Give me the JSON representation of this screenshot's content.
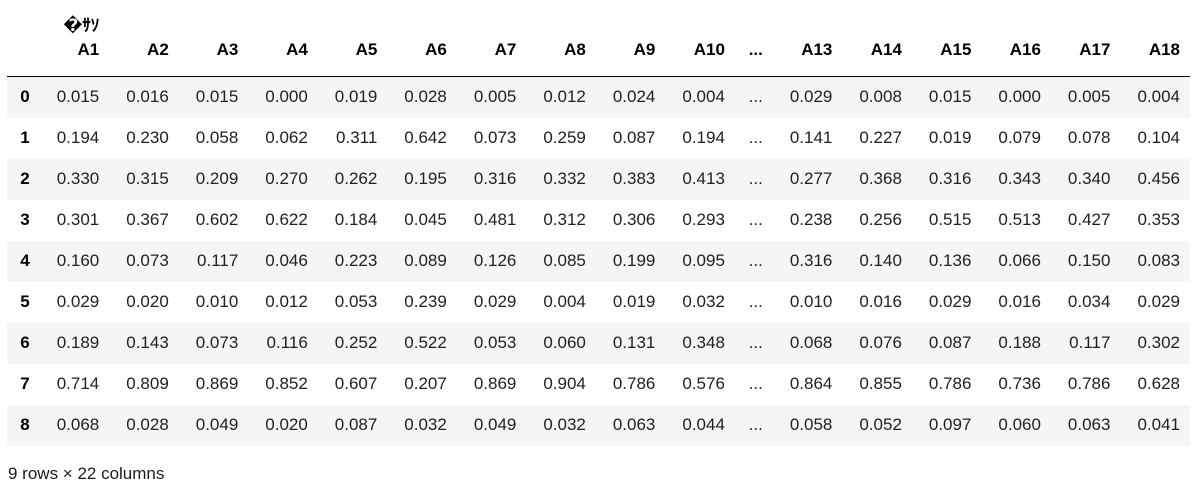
{
  "table": {
    "corner_label": "",
    "columns": [
      "�ｻｿ\nA1",
      "A2",
      "A3",
      "A4",
      "A5",
      "A6",
      "A7",
      "A8",
      "A9",
      "A10",
      "...",
      "A13",
      "A14",
      "A15",
      "A16",
      "A17",
      "A18"
    ],
    "rows": [
      {
        "index": "0",
        "values": [
          "0.015",
          "0.016",
          "0.015",
          "0.000",
          "0.019",
          "0.028",
          "0.005",
          "0.012",
          "0.024",
          "0.004",
          "...",
          "0.029",
          "0.008",
          "0.015",
          "0.000",
          "0.005",
          "0.004"
        ]
      },
      {
        "index": "1",
        "values": [
          "0.194",
          "0.230",
          "0.058",
          "0.062",
          "0.311",
          "0.642",
          "0.073",
          "0.259",
          "0.087",
          "0.194",
          "...",
          "0.141",
          "0.227",
          "0.019",
          "0.079",
          "0.078",
          "0.104"
        ]
      },
      {
        "index": "2",
        "values": [
          "0.330",
          "0.315",
          "0.209",
          "0.270",
          "0.262",
          "0.195",
          "0.316",
          "0.332",
          "0.383",
          "0.413",
          "...",
          "0.277",
          "0.368",
          "0.316",
          "0.343",
          "0.340",
          "0.456"
        ]
      },
      {
        "index": "3",
        "values": [
          "0.301",
          "0.367",
          "0.602",
          "0.622",
          "0.184",
          "0.045",
          "0.481",
          "0.312",
          "0.306",
          "0.293",
          "...",
          "0.238",
          "0.256",
          "0.515",
          "0.513",
          "0.427",
          "0.353"
        ]
      },
      {
        "index": "4",
        "values": [
          "0.160",
          "0.073",
          "0.117",
          "0.046",
          "0.223",
          "0.089",
          "0.126",
          "0.085",
          "0.199",
          "0.095",
          "...",
          "0.316",
          "0.140",
          "0.136",
          "0.066",
          "0.150",
          "0.083"
        ]
      },
      {
        "index": "5",
        "values": [
          "0.029",
          "0.020",
          "0.010",
          "0.012",
          "0.053",
          "0.239",
          "0.029",
          "0.004",
          "0.019",
          "0.032",
          "...",
          "0.010",
          "0.016",
          "0.029",
          "0.016",
          "0.034",
          "0.029"
        ]
      },
      {
        "index": "6",
        "values": [
          "0.189",
          "0.143",
          "0.073",
          "0.116",
          "0.252",
          "0.522",
          "0.053",
          "0.060",
          "0.131",
          "0.348",
          "...",
          "0.068",
          "0.076",
          "0.087",
          "0.188",
          "0.117",
          "0.302"
        ]
      },
      {
        "index": "7",
        "values": [
          "0.714",
          "0.809",
          "0.869",
          "0.852",
          "0.607",
          "0.207",
          "0.869",
          "0.904",
          "0.786",
          "0.576",
          "...",
          "0.864",
          "0.855",
          "0.786",
          "0.736",
          "0.786",
          "0.628"
        ]
      },
      {
        "index": "8",
        "values": [
          "0.068",
          "0.028",
          "0.049",
          "0.020",
          "0.087",
          "0.032",
          "0.049",
          "0.032",
          "0.063",
          "0.044",
          "...",
          "0.058",
          "0.052",
          "0.097",
          "0.060",
          "0.063",
          "0.041"
        ]
      }
    ],
    "footer": "9 rows × 22 columns"
  }
}
